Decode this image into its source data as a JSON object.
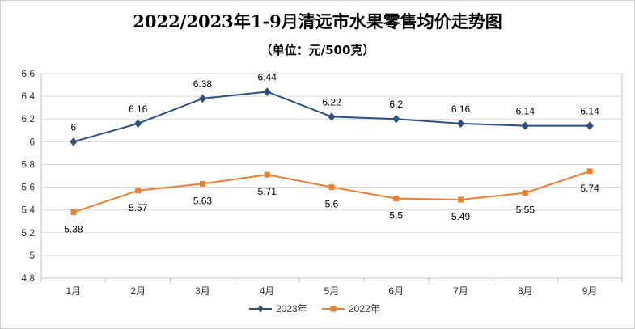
{
  "chart_data": {
    "type": "line",
    "title": "2022/2023年1-9月清远市水果零售均价走势图",
    "subtitle": "（单位：元/500克）",
    "categories": [
      "1月",
      "2月",
      "3月",
      "4月",
      "5月",
      "6月",
      "7月",
      "8月",
      "9月"
    ],
    "series": [
      {
        "name": "2023年",
        "color": "#2e4f7e",
        "marker": "diamond",
        "values": [
          6,
          6.16,
          6.38,
          6.44,
          6.22,
          6.2,
          6.16,
          6.14,
          6.14
        ],
        "labels": [
          "6",
          "6.16",
          "6.38",
          "6.44",
          "6.22",
          "6.2",
          "6.16",
          "6.14",
          "6.14"
        ]
      },
      {
        "name": "2022年",
        "color": "#ed7d31",
        "marker": "square",
        "values": [
          5.38,
          5.57,
          5.63,
          5.71,
          5.6,
          5.5,
          5.49,
          5.55,
          5.74
        ],
        "labels": [
          "5.38",
          "5.57",
          "5.63",
          "5.71",
          "5.6",
          "5.5",
          "5.49",
          "5.55",
          "5.74"
        ]
      }
    ],
    "y_ticks": [
      "4.8",
      "5",
      "5.2",
      "5.4",
      "5.6",
      "5.8",
      "6",
      "6.2",
      "6.4",
      "6.6"
    ],
    "ylim": [
      4.8,
      6.6
    ],
    "grid": true,
    "legend": "bottom"
  }
}
